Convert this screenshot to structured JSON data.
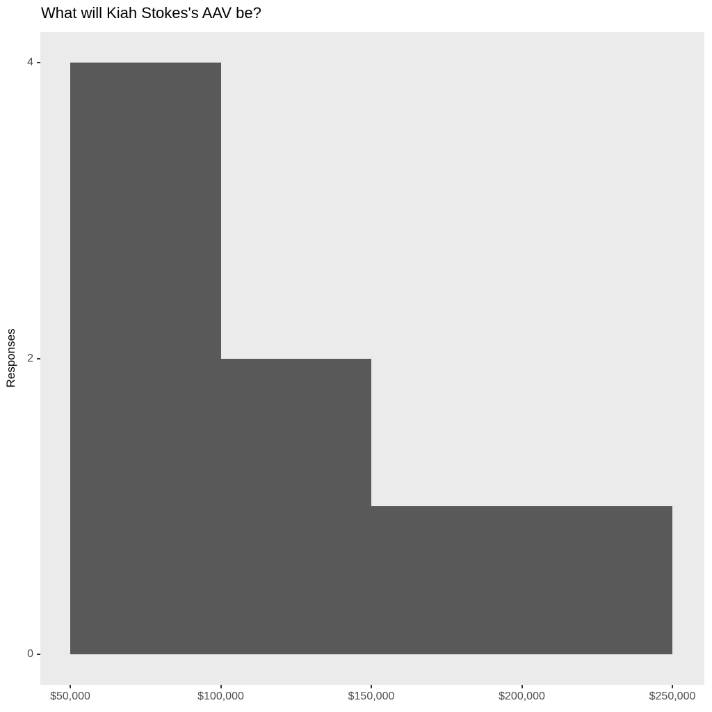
{
  "chart_data": {
    "type": "histogram",
    "title": "What will Kiah Stokes's AAV be?",
    "xlabel": "",
    "ylabel": "Responses",
    "bins": [
      {
        "x0": 50000,
        "x1": 100000,
        "count": 4
      },
      {
        "x0": 100000,
        "x1": 150000,
        "count": 2
      },
      {
        "x0": 150000,
        "x1": 200000,
        "count": 1
      },
      {
        "x0": 200000,
        "x1": 250000,
        "count": 1
      }
    ],
    "x_domain": [
      50000,
      250000
    ],
    "y_domain": [
      0,
      4
    ],
    "x_ticks": [
      {
        "value": 50000,
        "label": "$50,000"
      },
      {
        "value": 100000,
        "label": "$100,000"
      },
      {
        "value": 150000,
        "label": "$150,000"
      },
      {
        "value": 200000,
        "label": "$200,000"
      },
      {
        "value": 250000,
        "label": "$250,000"
      }
    ],
    "y_ticks": [
      {
        "value": 0,
        "label": "0"
      },
      {
        "value": 2,
        "label": "2"
      },
      {
        "value": 4,
        "label": "4"
      }
    ],
    "grid": false,
    "legend": false,
    "colors": {
      "bar_fill": "#595959",
      "panel_bg": "#EBEBEB",
      "tick_label": "#4D4D4D",
      "tick_mark": "#333333",
      "title": "#000000",
      "axis_title": "#000000"
    }
  }
}
